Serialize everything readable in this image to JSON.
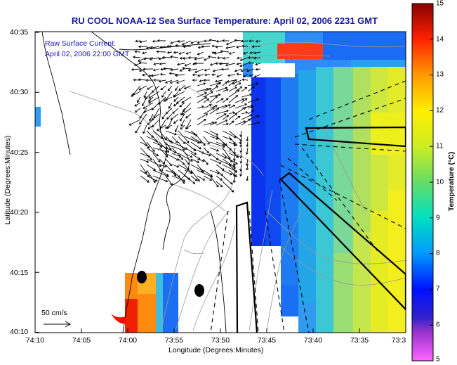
{
  "title": "RU COOL  NOAA-12  Sea Surface Temperature:  April 02, 2006 2231 GMT",
  "legend": {
    "line1": "Raw Surface Current:",
    "line2": "April 02, 2006 22:00 GMT"
  },
  "axes": {
    "x_label": "Longitude (Degrees:Minutes)",
    "y_label": "Latitude (Degrees:Minutes)",
    "x_ticks": [
      "74:10",
      "74:05",
      "74:00",
      "73:55",
      "73:50",
      "73:45",
      "73:40",
      "73:35",
      "73:3"
    ],
    "y_ticks": [
      "40:35",
      "40:30",
      "40:25",
      "40:20",
      "40:15",
      "40:10"
    ]
  },
  "colorbar": {
    "label": "Temperature (°C)",
    "min": 5,
    "max": 15,
    "ticks": [
      "15",
      "14",
      "13",
      "12",
      "11",
      "10",
      "9",
      "8",
      "7",
      "6",
      "5"
    ]
  },
  "scale_arrow": {
    "label": "50 cm/s"
  },
  "colors": {
    "title": "#1414a0",
    "legend_text": "#1414c8",
    "coastline": "#000000",
    "bathymetry": "#999999"
  }
}
